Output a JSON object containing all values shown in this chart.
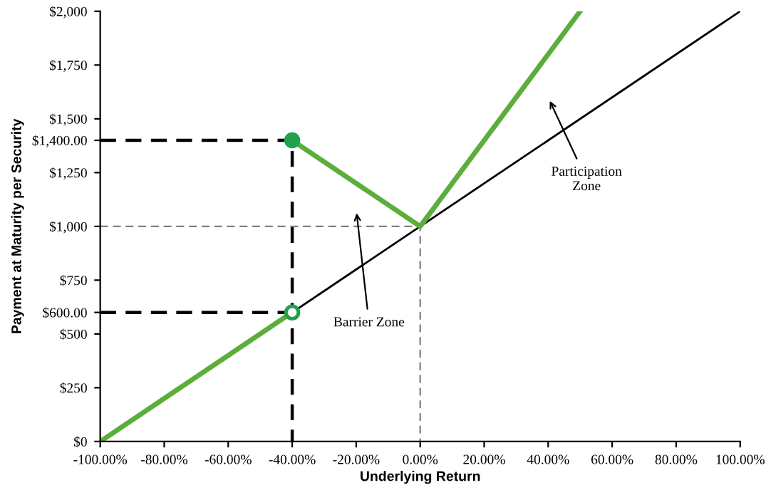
{
  "chart_data": {
    "type": "line",
    "xlabel": "Underlying Return",
    "ylabel": "Payment at Maturity per Security",
    "xlim": [
      -100,
      100
    ],
    "ylim": [
      0,
      2000
    ],
    "xticks": [
      {
        "value": -100,
        "label": "-100.00%"
      },
      {
        "value": -80,
        "label": "-80.00%"
      },
      {
        "value": -60,
        "label": "-60.00%"
      },
      {
        "value": -40,
        "label": "-40.00%"
      },
      {
        "value": -20,
        "label": "-20.00%"
      },
      {
        "value": 0,
        "label": "0.00%"
      },
      {
        "value": 20,
        "label": "20.00%"
      },
      {
        "value": 40,
        "label": "40.00%"
      },
      {
        "value": 60,
        "label": "60.00%"
      },
      {
        "value": 80,
        "label": "80.00%"
      },
      {
        "value": 100,
        "label": "100.00%"
      }
    ],
    "yticks": [
      {
        "value": 0,
        "label": "$0"
      },
      {
        "value": 250,
        "label": "$250"
      },
      {
        "value": 500,
        "label": "$500"
      },
      {
        "value": 600,
        "label": "$600.00"
      },
      {
        "value": 750,
        "label": "$750"
      },
      {
        "value": 1000,
        "label": "$1,000"
      },
      {
        "value": 1250,
        "label": "$1,250"
      },
      {
        "value": 1400,
        "label": "$1,400.00"
      },
      {
        "value": 1500,
        "label": "$1,500"
      },
      {
        "value": 1750,
        "label": "$1,750"
      },
      {
        "value": 2000,
        "label": "$2,000"
      }
    ],
    "grid": false,
    "series": [
      {
        "color": "#000000",
        "x": [
          -100,
          100
        ],
        "values": [
          0,
          2000
        ],
        "line_style": "solid"
      },
      {
        "color": "#000000",
        "x": [
          -100,
          -40,
          -40
        ],
        "values": [
          1400,
          1400,
          0
        ],
        "line_style": "dashed"
      },
      {
        "color": "#000000",
        "x": [
          -100,
          -40
        ],
        "values": [
          600,
          600
        ],
        "line_style": "dashed"
      },
      {
        "color": "#808080",
        "x": [
          -100,
          0,
          0
        ],
        "values": [
          1000,
          1000,
          0
        ],
        "line_style": "dashed"
      },
      {
        "color": "#5cae3c",
        "x": [
          -100,
          -40
        ],
        "values": [
          0,
          600
        ],
        "line_style": "solid"
      },
      {
        "color": "#5cae3c",
        "x": [
          -40,
          0,
          50
        ],
        "values": [
          1400,
          1000,
          2000
        ],
        "line_style": "solid"
      },
      {
        "type": "scatter",
        "color": "#22a04e",
        "x": [
          -40
        ],
        "values": [
          1400
        ],
        "marker": "circle"
      },
      {
        "type": "scatter",
        "color": "#22a04e",
        "x": [
          -40
        ],
        "values": [
          600
        ],
        "marker": "open circle"
      }
    ],
    "annotations": [
      "Barrier Zone",
      "Participation\nZone"
    ]
  }
}
